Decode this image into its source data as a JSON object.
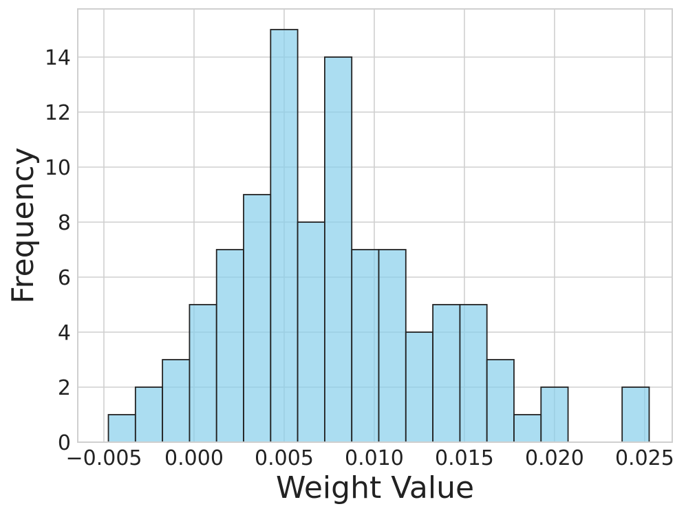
{
  "chart_data": {
    "type": "bar",
    "subtype": "histogram",
    "title": "",
    "xlabel": "Weight Value",
    "ylabel": "Frequency",
    "xlim": [
      -0.00645,
      0.02653
    ],
    "ylim": [
      0,
      15.75
    ],
    "x_ticks": [
      -0.005,
      0.0,
      0.005,
      0.01,
      0.015,
      0.02,
      0.025
    ],
    "x_tick_labels": [
      "−0.005",
      "0.000",
      "0.005",
      "0.010",
      "0.015",
      "0.020",
      "0.025"
    ],
    "y_ticks": [
      0,
      2,
      4,
      6,
      8,
      10,
      12,
      14
    ],
    "y_tick_labels": [
      "0",
      "2",
      "4",
      "6",
      "8",
      "10",
      "12",
      "14"
    ],
    "bin_start": -0.00475,
    "bin_width": 0.0015,
    "counts": [
      1,
      2,
      3,
      5,
      7,
      9,
      15,
      8,
      14,
      7,
      7,
      4,
      5,
      5,
      3,
      1,
      2,
      0,
      0,
      2
    ],
    "grid": true,
    "colors": {
      "bar_fill": "#87ceeb",
      "bar_opacity": 0.7,
      "bar_edge": "#222222",
      "grid": "#cfcfcf",
      "text": "#222222"
    }
  }
}
